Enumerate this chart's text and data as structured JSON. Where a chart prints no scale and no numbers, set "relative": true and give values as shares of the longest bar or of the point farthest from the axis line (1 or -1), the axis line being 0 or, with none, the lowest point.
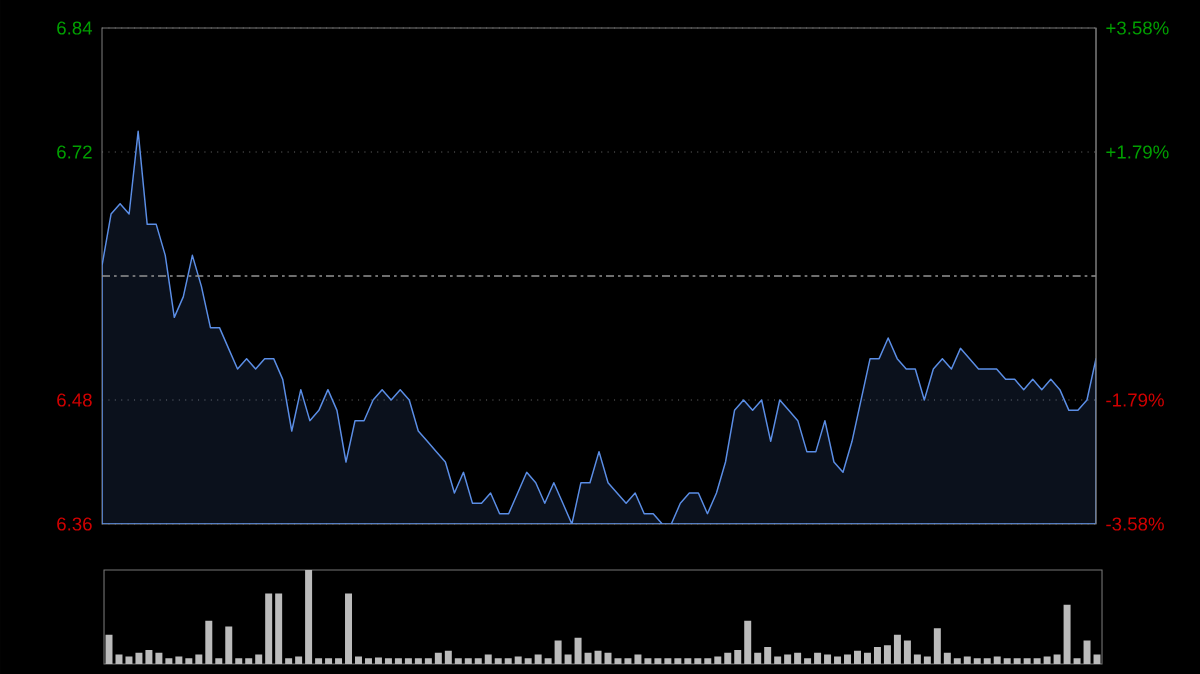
{
  "chart_data": [
    {
      "type": "area",
      "color": "#5b8ee6",
      "grid": "y",
      "tick_labels": "y",
      "categories": [
        null,
        null,
        null,
        null,
        null,
        null,
        null,
        null,
        null,
        null,
        null,
        null,
        null,
        null,
        null,
        null,
        null,
        null,
        null,
        null,
        null,
        null,
        null,
        null,
        null,
        null,
        null,
        null,
        null,
        null,
        null,
        null,
        null,
        null,
        null,
        null,
        null,
        null,
        null,
        null,
        null,
        null,
        null,
        null,
        null,
        null,
        null,
        null,
        null,
        null,
        null,
        null,
        null,
        null,
        null,
        null,
        null,
        null,
        null,
        null,
        null,
        null,
        null,
        null,
        null,
        null,
        null,
        null,
        null,
        null,
        null,
        null,
        null,
        null,
        null,
        null,
        null,
        null,
        null,
        null,
        null,
        null,
        null,
        null,
        null,
        null,
        null,
        null,
        null,
        null,
        null,
        null,
        null,
        null,
        null,
        null,
        null,
        null,
        null,
        null,
        null,
        null,
        null,
        null,
        null,
        null,
        null,
        null,
        null,
        null,
        null
      ],
      "values": [
        6.61,
        6.66,
        6.67,
        6.66,
        6.74,
        6.65,
        6.65,
        6.62,
        6.56,
        6.58,
        6.62,
        6.59,
        6.55,
        6.55,
        6.53,
        6.51,
        6.52,
        6.51,
        6.52,
        6.52,
        6.5,
        6.45,
        6.49,
        6.46,
        6.47,
        6.49,
        6.47,
        6.42,
        6.46,
        6.46,
        6.48,
        6.49,
        6.48,
        6.49,
        6.48,
        6.45,
        6.44,
        6.43,
        6.42,
        6.39,
        6.41,
        6.38,
        6.38,
        6.39,
        6.37,
        6.37,
        6.39,
        6.41,
        6.4,
        6.38,
        6.4,
        6.38,
        6.36,
        6.4,
        6.4,
        6.43,
        6.4,
        6.39,
        6.38,
        6.39,
        6.37,
        6.37,
        6.36,
        6.36,
        6.38,
        6.39,
        6.39,
        6.37,
        6.39,
        6.42,
        6.47,
        6.48,
        6.47,
        6.48,
        6.44,
        6.48,
        6.47,
        6.46,
        6.43,
        6.43,
        6.46,
        6.42,
        6.41,
        6.44,
        6.48,
        6.52,
        6.52,
        6.54,
        6.52,
        6.51,
        6.51,
        6.48,
        6.51,
        6.52,
        6.51,
        6.53,
        6.52,
        6.51,
        6.51,
        6.51,
        6.5,
        6.5,
        6.49,
        6.5,
        6.49,
        6.5,
        6.49,
        6.47,
        6.47,
        6.48,
        6.52
      ],
      "ylim": [
        6.36,
        6.84
      ],
      "yticks": [
        {
          "value": 6.36,
          "label": "6.36"
        },
        {
          "value": 6.48,
          "label": "6.48"
        },
        {
          "value": 6.72,
          "label": "6.72"
        },
        {
          "value": 6.84,
          "label": "6.84"
        }
      ],
      "y2lim": [
        -3.58,
        3.58
      ],
      "y2ticks": [
        {
          "value": -3.58,
          "label": "-3.58%"
        },
        {
          "value": -1.79,
          "label": "-1.79%"
        },
        {
          "value": 1.79,
          "label": "+1.79%"
        },
        {
          "value": 3.58,
          "label": "+3.58%"
        }
      ],
      "ref_lines": [
        {
          "axis": "y",
          "value": 6.6,
          "line_style": "dashed"
        }
      ]
    },
    {
      "type": "bar",
      "relative": true,
      "color": "#bbbbbb",
      "categories": [
        null,
        null,
        null,
        null,
        null,
        null,
        null,
        null,
        null,
        null,
        null,
        null,
        null,
        null,
        null,
        null,
        null,
        null,
        null,
        null,
        null,
        null,
        null,
        null,
        null,
        null,
        null,
        null,
        null,
        null,
        null,
        null,
        null,
        null,
        null,
        null,
        null,
        null,
        null,
        null,
        null,
        null,
        null,
        null,
        null,
        null,
        null,
        null,
        null,
        null,
        null,
        null,
        null,
        null,
        null,
        null,
        null,
        null,
        null,
        null,
        null,
        null,
        null,
        null,
        null,
        null,
        null,
        null,
        null,
        null,
        null,
        null,
        null,
        null,
        null,
        null,
        null,
        null,
        null,
        null,
        null,
        null,
        null,
        null,
        null,
        null,
        null,
        null,
        null,
        null,
        null,
        null,
        null,
        null,
        null,
        null,
        null,
        null,
        null,
        null
      ],
      "values": [
        0.31,
        0.1,
        0.08,
        0.12,
        0.15,
        0.12,
        0.06,
        0.08,
        0.06,
        0.1,
        0.46,
        0.06,
        0.4,
        0.06,
        0.06,
        0.1,
        0.75,
        0.75,
        0.06,
        0.08,
        1,
        0.06,
        0.06,
        0.06,
        0.75,
        0.08,
        0.06,
        0.07,
        0.06,
        0.06,
        0.06,
        0.06,
        0.06,
        0.12,
        0.14,
        0.06,
        0.06,
        0.06,
        0.1,
        0.06,
        0.06,
        0.08,
        0.06,
        0.1,
        0.06,
        0.25,
        0.1,
        0.28,
        0.12,
        0.14,
        0.12,
        0.06,
        0.06,
        0.1,
        0.06,
        0.06,
        0.06,
        0.06,
        0.06,
        0.06,
        0.06,
        0.08,
        0.12,
        0.15,
        0.46,
        0.12,
        0.18,
        0.08,
        0.1,
        0.12,
        0.06,
        0.12,
        0.1,
        0.08,
        0.1,
        0.14,
        0.12,
        0.18,
        0.2,
        0.31,
        0.25,
        0.1,
        0.08,
        0.38,
        0.12,
        0.06,
        0.08,
        0.06,
        0.06,
        0.08,
        0.06,
        0.06,
        0.06,
        0.06,
        0.08,
        0.1,
        0.63,
        0.06,
        0.25,
        0.1
      ]
    }
  ]
}
